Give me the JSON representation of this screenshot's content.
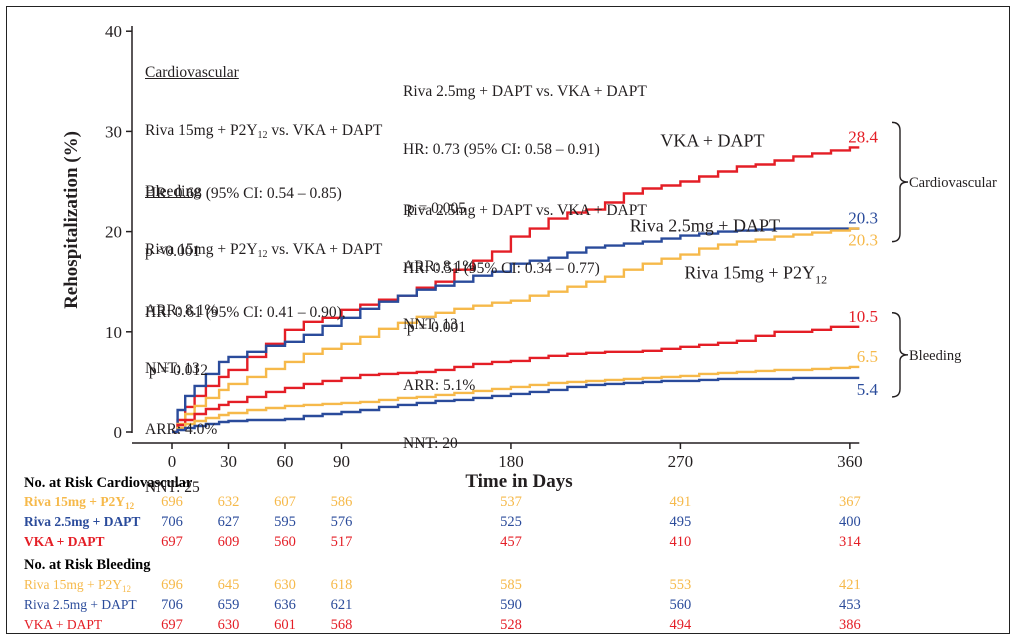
{
  "chart_data": {
    "type": "line",
    "title": "",
    "xlabel": "Time in Days",
    "ylabel": "Rehospitalization (%)",
    "xlim": [
      0,
      365
    ],
    "ylim": [
      0,
      40
    ],
    "x_ticks": [
      0,
      30,
      60,
      90,
      180,
      270,
      360
    ],
    "y_ticks": [
      0,
      10,
      20,
      30,
      40
    ],
    "grid": false,
    "legend": "direct labels on curves",
    "series": [
      {
        "name": "VKA + DAPT",
        "outcome": "Cardiovascular",
        "color": "#e41e26",
        "end_label": "28.4",
        "x": [
          0,
          3,
          7,
          12,
          18,
          25,
          30,
          40,
          50,
          60,
          70,
          80,
          90,
          100,
          110,
          120,
          130,
          140,
          150,
          160,
          170,
          180,
          190,
          200,
          210,
          220,
          230,
          240,
          250,
          260,
          270,
          280,
          290,
          300,
          310,
          320,
          330,
          340,
          350,
          360,
          365
        ],
        "y": [
          0,
          1.2,
          2.5,
          3.6,
          4.6,
          5.5,
          6.2,
          7.5,
          8.8,
          10.2,
          11.0,
          11.4,
          12.2,
          12.7,
          13.2,
          13.6,
          14.4,
          15.0,
          16.2,
          17.1,
          18.0,
          19.5,
          20.3,
          21.3,
          21.9,
          22.2,
          22.9,
          23.8,
          24.3,
          24.6,
          25.0,
          25.5,
          26.0,
          26.5,
          26.7,
          27.1,
          27.5,
          27.8,
          28.1,
          28.4,
          28.4
        ]
      },
      {
        "name": "Riva 2.5mg + DAPT",
        "outcome": "Cardiovascular",
        "color": "#2a4b9b",
        "end_label": "20.3",
        "x": [
          0,
          3,
          7,
          12,
          18,
          25,
          30,
          40,
          50,
          60,
          70,
          80,
          90,
          100,
          110,
          120,
          130,
          140,
          150,
          160,
          170,
          180,
          190,
          200,
          210,
          220,
          230,
          240,
          250,
          260,
          270,
          280,
          290,
          300,
          310,
          320,
          330,
          340,
          350,
          360,
          365
        ],
        "y": [
          0,
          2.2,
          3.6,
          4.6,
          5.8,
          7.0,
          7.5,
          8.0,
          8.6,
          9.0,
          9.7,
          10.6,
          11.4,
          12.3,
          13.0,
          13.6,
          14.2,
          14.6,
          15.0,
          15.6,
          16.0,
          16.8,
          17.1,
          17.4,
          17.9,
          18.4,
          18.6,
          18.8,
          19.0,
          19.3,
          19.6,
          19.8,
          20.0,
          20.1,
          20.2,
          20.3,
          20.3,
          20.3,
          20.3,
          20.3,
          20.3
        ]
      },
      {
        "name": "Riva 15mg + P2Y12",
        "outcome": "Cardiovascular",
        "color": "#f6b94a",
        "end_label": "20.3",
        "x": [
          0,
          3,
          7,
          12,
          18,
          25,
          30,
          40,
          50,
          60,
          70,
          80,
          90,
          100,
          110,
          120,
          130,
          140,
          150,
          160,
          170,
          180,
          190,
          200,
          210,
          220,
          230,
          240,
          250,
          260,
          270,
          280,
          290,
          300,
          310,
          320,
          330,
          340,
          350,
          360,
          365
        ],
        "y": [
          0,
          0.8,
          1.8,
          2.6,
          3.4,
          4.2,
          4.8,
          5.5,
          6.3,
          7.0,
          7.8,
          8.3,
          8.8,
          9.5,
          10.3,
          10.9,
          11.5,
          11.9,
          12.3,
          12.6,
          12.9,
          13.1,
          13.6,
          14.0,
          14.5,
          15.0,
          15.5,
          16.2,
          16.8,
          17.3,
          17.7,
          18.3,
          18.7,
          19.0,
          19.2,
          19.5,
          19.7,
          19.9,
          20.1,
          20.3,
          20.3
        ]
      },
      {
        "name": "VKA + DAPT",
        "outcome": "Bleeding",
        "color": "#e41e26",
        "end_label": "10.5",
        "x": [
          0,
          3,
          7,
          12,
          18,
          25,
          30,
          40,
          50,
          60,
          70,
          80,
          90,
          100,
          110,
          120,
          130,
          140,
          150,
          160,
          170,
          180,
          190,
          200,
          210,
          220,
          230,
          240,
          250,
          260,
          270,
          280,
          290,
          300,
          310,
          320,
          330,
          340,
          350,
          360,
          365
        ],
        "y": [
          0,
          0.7,
          1.2,
          1.8,
          2.3,
          2.7,
          3.0,
          3.5,
          4.0,
          4.4,
          4.8,
          5.1,
          5.4,
          5.7,
          5.8,
          5.9,
          6.0,
          6.2,
          6.5,
          6.8,
          7.0,
          7.1,
          7.4,
          7.6,
          7.8,
          7.9,
          8.0,
          8.0,
          8.1,
          8.3,
          8.5,
          8.7,
          8.9,
          9.1,
          9.6,
          10.0,
          10.0,
          10.2,
          10.5,
          10.5,
          10.5
        ]
      },
      {
        "name": "Riva 15mg + P2Y12",
        "outcome": "Bleeding",
        "color": "#f6b94a",
        "end_label": "6.5",
        "x": [
          0,
          3,
          7,
          12,
          18,
          25,
          30,
          40,
          50,
          60,
          70,
          80,
          90,
          100,
          110,
          120,
          130,
          140,
          150,
          160,
          170,
          180,
          190,
          200,
          210,
          220,
          230,
          240,
          250,
          260,
          270,
          280,
          290,
          300,
          310,
          320,
          330,
          340,
          350,
          360,
          365
        ],
        "y": [
          0,
          0.4,
          0.8,
          1.1,
          1.4,
          1.7,
          1.9,
          2.2,
          2.4,
          2.6,
          2.7,
          2.8,
          2.9,
          3.0,
          3.2,
          3.4,
          3.5,
          3.7,
          3.9,
          4.1,
          4.3,
          4.5,
          4.7,
          4.9,
          5.0,
          5.1,
          5.2,
          5.3,
          5.4,
          5.5,
          5.6,
          5.8,
          5.9,
          6.0,
          6.1,
          6.2,
          6.2,
          6.3,
          6.4,
          6.5,
          6.5
        ]
      },
      {
        "name": "Riva 2.5mg + DAPT",
        "outcome": "Bleeding",
        "color": "#2a4b9b",
        "end_label": "5.4",
        "x": [
          0,
          3,
          7,
          12,
          18,
          25,
          30,
          40,
          50,
          60,
          70,
          80,
          90,
          100,
          110,
          120,
          130,
          140,
          150,
          160,
          170,
          180,
          190,
          200,
          210,
          220,
          230,
          240,
          250,
          260,
          270,
          280,
          290,
          300,
          310,
          320,
          330,
          340,
          350,
          360,
          365
        ],
        "y": [
          0,
          0.2,
          0.4,
          0.6,
          0.8,
          1.0,
          1.1,
          1.2,
          1.2,
          1.3,
          1.6,
          1.8,
          2.0,
          2.2,
          2.5,
          2.7,
          2.9,
          3.1,
          3.2,
          3.4,
          3.6,
          3.8,
          4.0,
          4.2,
          4.5,
          4.7,
          4.8,
          4.9,
          5.0,
          5.1,
          5.1,
          5.2,
          5.3,
          5.3,
          5.3,
          5.3,
          5.4,
          5.4,
          5.4,
          5.4,
          5.4
        ]
      }
    ],
    "curve_labels": [
      {
        "text": "VKA + DAPT",
        "x": 287,
        "y": 28.5,
        "anchor": "middle"
      },
      {
        "text": "Riva 2.5mg + DAPT",
        "x": 283,
        "y": 20.0,
        "anchor": "middle"
      },
      {
        "text": "Riva 15mg + P2Y",
        "sub": "12",
        "x": 310,
        "y": 15.3,
        "anchor": "middle"
      }
    ],
    "brackets": [
      {
        "label": "Cardiovascular",
        "y_top": 30.9,
        "y_bot": 19.0
      },
      {
        "label": "Bleeding",
        "y_top": 11.9,
        "y_bot": 3.5
      }
    ]
  },
  "annotations": {
    "cv_header": "Cardiovascular",
    "cv_left": [
      "Riva 15mg + P2Y12 vs. VKA + DAPT",
      "HR: 0.68 (95% CI: 0.54 – 0.85)",
      "p <0.001",
      "ARR: 8.1%",
      "NNT: 13"
    ],
    "cv_right": [
      "Riva 2.5mg + DAPT vs. VKA + DAPT",
      "HR: 0.73 (95% CI: 0.58 – 0.91)",
      " p = 0.005",
      "ARR: 8.1%",
      "NNT: 13"
    ],
    "bl_header": "Bleeding",
    "bl_left": [
      "Riva 15mg + P2Y12 vs. VKA + DAPT",
      "HR: 0.61 (95% CI: 0.41 – 0.90),",
      " p = 0.012",
      "ARR: 4.0%",
      "NNT: 25"
    ],
    "bl_right": [
      "Riva 2.5mg + DAPT vs. VKA + DAPT",
      "HR: 0.51 (95% CI: 0.34 – 0.77)",
      " p = 0.001",
      "ARR: 5.1%",
      "NNT: 20"
    ]
  },
  "risk_table": {
    "time_points": [
      0,
      30,
      60,
      90,
      180,
      270,
      360
    ],
    "sections": [
      {
        "title": "No. at Risk Cardiovascular",
        "rows": [
          {
            "label": "Riva 15mg + P2Y12",
            "color": "#f6b94a",
            "values": [
              "696",
              "632",
              "607",
              "586",
              "537",
              "491",
              "367"
            ]
          },
          {
            "label": "Riva 2.5mg + DAPT",
            "color": "#2a4b9b",
            "values": [
              "706",
              "627",
              "595",
              "576",
              "525",
              "495",
              "400"
            ]
          },
          {
            "label": "VKA + DAPT",
            "color": "#e41e26",
            "values": [
              "697",
              "609",
              "560",
              "517",
              "457",
              "410",
              "314"
            ]
          }
        ]
      },
      {
        "title": "No. at Risk Bleeding",
        "rows": [
          {
            "label": "Riva 15mg  + P2Y12",
            "color": "#f6b94a",
            "values": [
              "696",
              "645",
              "630",
              "618",
              "585",
              "553",
              "421"
            ]
          },
          {
            "label": "Riva 2.5mg + DAPT",
            "color": "#2a4b9b",
            "values": [
              "706",
              "659",
              "636",
              "621",
              "590",
              "560",
              "453"
            ]
          },
          {
            "label": "VKA + DAPT",
            "color": "#e41e26",
            "values": [
              "697",
              "630",
              "601",
              "568",
              "528",
              "494",
              "386"
            ]
          }
        ]
      }
    ]
  }
}
